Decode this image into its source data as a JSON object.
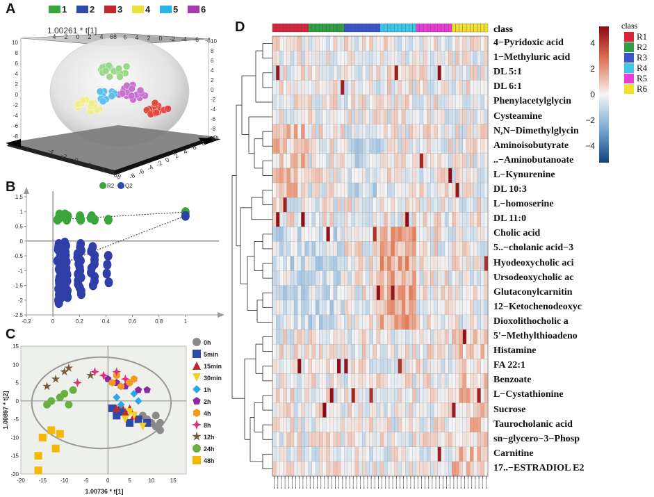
{
  "panels": {
    "a": "A",
    "b": "B",
    "c": "C",
    "d": "D"
  },
  "panel_a": {
    "axis_title": "1.00261 * t[1]",
    "group_legend": [
      {
        "label": "1",
        "color": "#3aa53a"
      },
      {
        "label": "2",
        "color": "#2e4aa8"
      },
      {
        "label": "3",
        "color": "#c0282d"
      },
      {
        "label": "4",
        "color": "#e8e23a"
      },
      {
        "label": "5",
        "color": "#29b4e8"
      },
      {
        "label": "6",
        "color": "#a53ab0"
      }
    ],
    "top_ticks": [
      "4",
      "2",
      "0",
      "2",
      "4",
      "68",
      "6",
      "4",
      "2",
      "0",
      "-2",
      "-4",
      "-6",
      "-8"
    ],
    "left_ticks": [
      "10",
      "8",
      "6",
      "4",
      "2",
      "0",
      "-2",
      "-4",
      "-6",
      "-8"
    ],
    "right_ticks": [
      "10",
      "8",
      "6",
      "4",
      "2",
      "0",
      "-2",
      "-4",
      "-6",
      "-8",
      "-10"
    ],
    "bottom_left_ticks": [
      "-4",
      "-2",
      "0",
      "2",
      "4",
      "68"
    ],
    "bottom_right_ticks": [
      "-8",
      "-6",
      "-4",
      "-2",
      "0",
      "2",
      "4",
      "6",
      "8",
      "10"
    ]
  },
  "panel_b": {
    "legend": [
      {
        "label": "R2",
        "color": "#3aa53a"
      },
      {
        "label": "Q2",
        "color": "#2e4aa8"
      }
    ],
    "chart_data": {
      "type": "scatter",
      "title": "",
      "xlim": [
        -0.2,
        1.2
      ],
      "ylim": [
        -2.5,
        1.5
      ],
      "x_ticks": [
        "-0.2",
        "0",
        "0.2",
        "0.4",
        "0.6",
        "0.8",
        "1"
      ],
      "y_ticks": [
        "1.5",
        "1",
        "0.5",
        "0",
        "-0.5",
        "-1",
        "-1.5",
        "-2",
        "-2.5"
      ],
      "series": [
        {
          "name": "R2",
          "x": [
            0.05,
            0.1,
            0.2,
            0.3,
            0.42,
            1.0
          ],
          "y": [
            0.85,
            0.85,
            0.85,
            0.85,
            0.85,
            0.98
          ]
        },
        {
          "name": "Q2",
          "x": [
            0.05,
            0.1,
            0.2,
            0.3,
            0.4,
            1.0
          ],
          "y": [
            -0.2,
            -0.1,
            -0.3,
            -0.2,
            -0.5,
            0.85
          ]
        }
      ]
    }
  },
  "panel_c": {
    "ylabel": "1.00897 * t[2]",
    "xlabel": "1.00736 * t[1]",
    "x_ticks": [
      "-20",
      "-15",
      "-10",
      "-5",
      "0",
      "5",
      "10",
      "15"
    ],
    "y_ticks": [
      "15",
      "10",
      "5",
      "0",
      "-5",
      "-10",
      "-15",
      "-20"
    ],
    "legend": [
      {
        "label": "0h",
        "color": "#8a8a8a",
        "shape": "circle"
      },
      {
        "label": "5min",
        "color": "#2e4aa8",
        "shape": "square"
      },
      {
        "label": "15min",
        "color": "#c0282d",
        "shape": "triangle"
      },
      {
        "label": "30min",
        "color": "#f0d020",
        "shape": "triangle-down"
      },
      {
        "label": "1h",
        "color": "#29a8e8",
        "shape": "diamond"
      },
      {
        "label": "2h",
        "color": "#8a2aa0",
        "shape": "pentagon"
      },
      {
        "label": "4h",
        "color": "#f39a1e",
        "shape": "hexagon"
      },
      {
        "label": "8h",
        "color": "#e0307a",
        "shape": "star4"
      },
      {
        "label": "12h",
        "color": "#7a5a3a",
        "shape": "star5"
      },
      {
        "label": "24h",
        "color": "#6ab040",
        "shape": "circle"
      },
      {
        "label": "48h",
        "color": "#f5b800",
        "shape": "square"
      }
    ],
    "chart_data": {
      "type": "scatter",
      "xlim": [
        -20,
        18
      ],
      "ylim": [
        -20,
        15
      ],
      "series": [
        {
          "name": "0h",
          "points": [
            [
              8,
              -4
            ],
            [
              10,
              -6
            ],
            [
              11,
              -7
            ],
            [
              12,
              -6
            ],
            [
              9,
              -5
            ],
            [
              11,
              -4
            ],
            [
              12,
              -8
            ]
          ]
        },
        {
          "name": "5min",
          "points": [
            [
              1,
              -2
            ],
            [
              2,
              -4
            ],
            [
              3,
              -3
            ],
            [
              5,
              -6
            ],
            [
              7,
              -5
            ],
            [
              9,
              -6
            ],
            [
              2,
              -3
            ]
          ]
        },
        {
          "name": "15min",
          "points": [
            [
              2,
              -2
            ],
            [
              3,
              -1
            ],
            [
              4,
              -3
            ],
            [
              5,
              -2
            ],
            [
              6,
              -4
            ]
          ]
        },
        {
          "name": "30min",
          "points": [
            [
              4,
              -5
            ],
            [
              5,
              -3
            ],
            [
              6,
              -4
            ],
            [
              8,
              -7
            ]
          ]
        },
        {
          "name": "1h",
          "points": [
            [
              2,
              1
            ],
            [
              3,
              -1
            ],
            [
              6,
              2
            ],
            [
              7,
              0
            ]
          ]
        },
        {
          "name": "2h",
          "points": [
            [
              0,
              6
            ],
            [
              2,
              5
            ],
            [
              7,
              3
            ],
            [
              9,
              3
            ],
            [
              4,
              4
            ]
          ]
        },
        {
          "name": "4h",
          "points": [
            [
              1,
              5
            ],
            [
              2,
              7
            ],
            [
              5,
              5
            ],
            [
              6,
              6
            ],
            [
              3,
              4
            ]
          ]
        },
        {
          "name": "8h",
          "points": [
            [
              -7,
              5
            ],
            [
              -3,
              8
            ],
            [
              -1,
              7
            ],
            [
              2,
              8
            ],
            [
              4,
              6
            ]
          ]
        },
        {
          "name": "12h",
          "points": [
            [
              -14,
              4
            ],
            [
              -12,
              6
            ],
            [
              -10,
              8
            ],
            [
              -9,
              9
            ],
            [
              -4,
              7
            ]
          ]
        },
        {
          "name": "24h",
          "points": [
            [
              -14,
              -1
            ],
            [
              -13,
              0
            ],
            [
              -11,
              1
            ],
            [
              -10,
              2
            ],
            [
              -9,
              -1
            ],
            [
              -8,
              3
            ]
          ]
        },
        {
          "name": "48h",
          "points": [
            [
              -16,
              -15
            ],
            [
              -15,
              -10
            ],
            [
              -13,
              -8
            ],
            [
              -12,
              -13
            ],
            [
              -11,
              -9
            ],
            [
              -16,
              -19
            ]
          ]
        }
      ]
    }
  },
  "panel_d": {
    "class_label": "class",
    "legend_title": "class",
    "classes": [
      {
        "label": "R1",
        "color": "#d6263c"
      },
      {
        "label": "R2",
        "color": "#2f9e44"
      },
      {
        "label": "R3",
        "color": "#3b55c8"
      },
      {
        "label": "R4",
        "color": "#3ec8e6"
      },
      {
        "label": "R5",
        "color": "#e83ed6"
      },
      {
        "label": "R6",
        "color": "#f2e030"
      }
    ],
    "colorbar_ticks": [
      "4",
      "2",
      "0",
      "−2",
      "−4"
    ],
    "metabolites": [
      "4−Pyridoxic acid",
      "1−Methyluric acid",
      "DL 5:1",
      "DL 6:1",
      "Phenylacetylglycin",
      "Cysteamine",
      "N,N−Dimethylglycin",
      "Aminoisobutyrate",
      "..−Aminobutanoate",
      "L−Kynurenine",
      "DL 10:3",
      "L−homoserine",
      "DL 11:0",
      "Cholic acid",
      "5..−cholanic acid−3",
      "Hyodeoxycholic aci",
      "Ursodeoxycholic ac",
      "Glutaconylcarnitin",
      "12−Ketochenodeoxyc",
      "Dioxolithocholic a",
      "5'−Methylthioadeno",
      "Histamine",
      "FA 22:1",
      "Benzoate",
      "L−Cystathionine",
      "Sucrose",
      "Taurocholanic acid",
      "sn−glycero−3−Phosp",
      "Carnitine",
      "17..−ESTRADIOL E2"
    ]
  }
}
